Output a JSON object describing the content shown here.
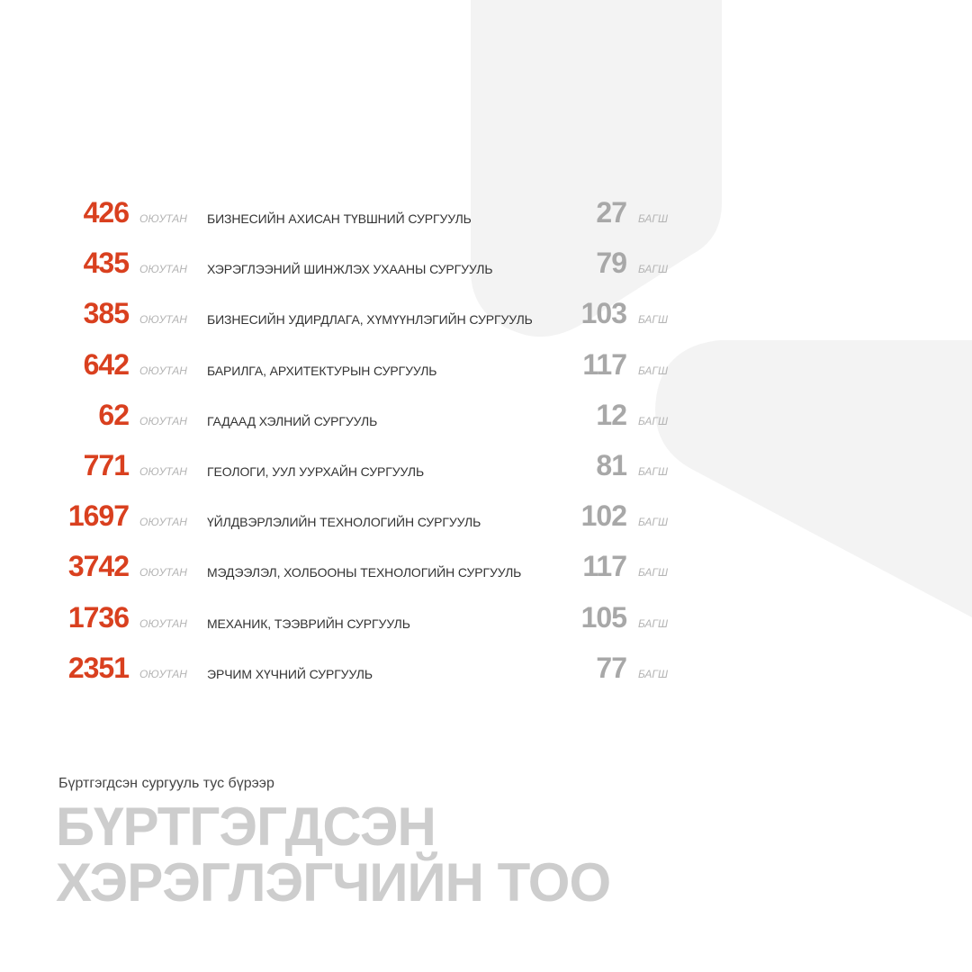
{
  "colors": {
    "student_accent": "#d9401f",
    "teacher_accent": "#a8a8a8",
    "label_gray": "#b4b4b4",
    "title_gray": "#cdcdcd",
    "decor_gray": "#f3f3f3"
  },
  "labels": {
    "students": "ОЮУТАН",
    "teachers": "БАГШ"
  },
  "rows": [
    {
      "students": "426",
      "school": "БИЗНЕСИЙН АХИСАН ТҮВШНИЙ СУРГУУЛЬ",
      "teachers": "27"
    },
    {
      "students": "435",
      "school": "ХЭРЭГЛЭЭНИЙ ШИНЖЛЭХ УХААНЫ СУРГУУЛЬ",
      "teachers": "79"
    },
    {
      "students": "385",
      "school": "БИЗНЕСИЙН УДИРДЛАГА, ХҮМҮҮНЛЭГИЙН СУРГУУЛЬ",
      "teachers": "103"
    },
    {
      "students": "642",
      "school": "БАРИЛГА, АРХИТЕКТУРЫН СУРГУУЛЬ",
      "teachers": "117"
    },
    {
      "students": "62",
      "school": "ГАДААД ХЭЛНИЙ СУРГУУЛЬ",
      "teachers": "12"
    },
    {
      "students": "771",
      "school": "ГЕОЛОГИ, УУЛ УУРХАЙН СУРГУУЛЬ",
      "teachers": "81"
    },
    {
      "students": "1697",
      "school": "ҮЙЛДВЭРЛЭЛИЙН ТЕХНОЛОГИЙН СУРГУУЛЬ",
      "teachers": "102"
    },
    {
      "students": "3742",
      "school": "МЭДЭЭЛЭЛ, ХОЛБООНЫ ТЕХНОЛОГИЙН СУРГУУЛЬ",
      "teachers": "117"
    },
    {
      "students": "1736",
      "school": "МЕХАНИК, ТЭЭВРИЙН СУРГУУЛЬ",
      "teachers": "105"
    },
    {
      "students": "2351",
      "school": "ЭРЧИМ ХҮЧНИЙ СУРГУУЛЬ",
      "teachers": "77"
    }
  ],
  "footer": {
    "subtitle": "Бүртгэгдсэн сургууль тус бүрээр",
    "title_line1": "БҮРТГЭГДСЭН",
    "title_line2": "ХЭРЭГЛЭГЧИЙН ТОО"
  }
}
